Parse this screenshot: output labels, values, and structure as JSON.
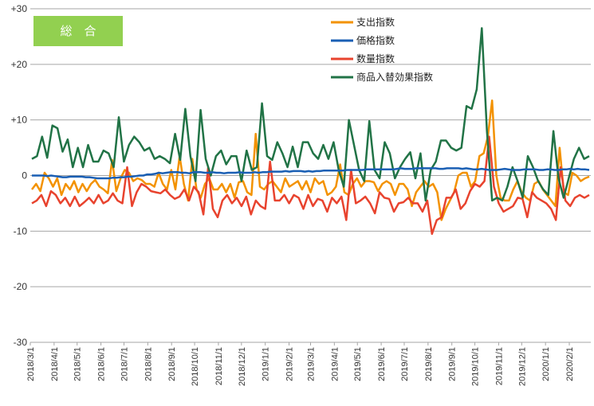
{
  "chart_data": {
    "type": "line",
    "title_box": "総　合",
    "title_box_color": "#92d050",
    "ylim": [
      -30,
      30
    ],
    "y_ticks": [
      30,
      20,
      10,
      0,
      -10,
      -20,
      -30
    ],
    "y_tick_labels": [
      "+30",
      "+20",
      "+10",
      "0",
      "-10",
      "-20",
      "-30"
    ],
    "x_start": "2018-03-01",
    "x_end": "2020-02-29",
    "x_tick_labels": [
      "2018/3/1",
      "2018/4/1",
      "2018/5/1",
      "2018/6/1",
      "2018/7/1",
      "2018/8/1",
      "2018/9/1",
      "2018/10/1",
      "2018/11/1",
      "2018/12/1",
      "2019/1/1",
      "2019/2/1",
      "2019/3/1",
      "2019/4/1",
      "2019/5/1",
      "2019/6/1",
      "2019/7/1",
      "2019/8/1",
      "2019/9/1",
      "2019/10/1",
      "2019/11/1",
      "2019/12/1",
      "2020/1/1",
      "2020/2/1"
    ],
    "grid": "horizontal",
    "legend_position": "top-right",
    "series": [
      {
        "name": "支出指数",
        "color": "#f39200",
        "values": [
          -2.5,
          -1.5,
          -2.8,
          0.5,
          -0.5,
          -2,
          -0.5,
          -3.5,
          -1.5,
          -2.5,
          -1,
          -3,
          -1.5,
          -2.8,
          -1.5,
          -0.8,
          -2,
          -2.5,
          -3.2,
          2.8,
          -2.8,
          -0.5,
          1,
          0.5,
          -1,
          -0.5,
          -0.8,
          -1.5,
          -1.5,
          -2,
          0.5,
          -1.5,
          -2.5,
          1,
          -2.5,
          3.5,
          -1.5,
          -4.5,
          3,
          -2.5,
          -4,
          -1.5,
          -0.5,
          -2.5,
          -2.5,
          -1.5,
          -3,
          -1.5,
          -4,
          -1.2,
          -1,
          -3,
          -3.5,
          7.5,
          -2,
          -2.5,
          -1.5,
          -1,
          -2,
          -3,
          -0.5,
          -2,
          -1.5,
          -1,
          -2.5,
          -1,
          -3,
          -0.5,
          -1.5,
          -1,
          -3.5,
          -3,
          -2,
          2,
          -3,
          -3.5,
          -1.5,
          -0.5,
          -2,
          -1,
          -1,
          -1.2,
          -2.8,
          -1.5,
          -1,
          -1.5,
          -3.5,
          -1.5,
          -1.5,
          -2.5,
          -5.5,
          -3,
          -2,
          -1,
          -2,
          -1.5,
          -3,
          -8,
          -6,
          -4.5,
          -3,
          0,
          0.5,
          0.5,
          -2,
          -1,
          3.5,
          4,
          7,
          13.5,
          0,
          -4,
          -4.5,
          -4.5,
          -2.5,
          -1,
          -3,
          -4,
          -4.5,
          -1.5,
          -1,
          -2.5,
          -3.5,
          -4.5,
          -5.5,
          5,
          -3,
          -3.5,
          0.5,
          0,
          -1,
          -0.5,
          -0.2
        ],
        "text_values": "approximate values read from the chart"
      },
      {
        "name": "価格指数",
        "color": "#1a5fb4",
        "values": [
          0,
          0,
          0,
          0,
          -0.1,
          0,
          -0.1,
          -0.2,
          -0.3,
          -0.3,
          -0.2,
          -0.2,
          -0.2,
          -0.2,
          -0.3,
          -0.3,
          -0.4,
          -0.5,
          -0.5,
          -0.5,
          -0.5,
          -0.4,
          -0.4,
          -0.3,
          -0.3,
          -0.2,
          -0.2,
          -0.1,
          0,
          0,
          0.2,
          0.2,
          0.3,
          0.5,
          0.4,
          0.5,
          0.6,
          0.6,
          0.6,
          0.5,
          0.5,
          0.4,
          0.6,
          0.6,
          0.6,
          0.5,
          0.5,
          0.6,
          0.5,
          0.5,
          0.4,
          0.5,
          0.5,
          0.5,
          0.6,
          0.5,
          0.5,
          0.5,
          0.6,
          0.5,
          0.6,
          0.6,
          0.7,
          0.7,
          0.7,
          0.7,
          0.8,
          0.7,
          0.8,
          0.8,
          0.8,
          0.7,
          0.8,
          0.7,
          0.8,
          0.8,
          0.9,
          0.9,
          0.9,
          0.9,
          0.9,
          0.9,
          1,
          1,
          1,
          1,
          1,
          1.1,
          1.1,
          1.1,
          1.1,
          1.1,
          1.1,
          1.1,
          1.1,
          1.2,
          1.3,
          1.2,
          1.2,
          1.2,
          1.3,
          1.3,
          1.3,
          1.3,
          1.3,
          1.3,
          1.2,
          1.2,
          1.3,
          1.3,
          1.3,
          1.3,
          1.2,
          1.3,
          1.2,
          1.1,
          1.1,
          1.2,
          1.1,
          1,
          1,
          1,
          1.1,
          1.2,
          1.1,
          1,
          1,
          1,
          1.1,
          1.1,
          1.1,
          1.1,
          1,
          1,
          1.1,
          1.1,
          1,
          1,
          1.1,
          1.1,
          1.2,
          1.1,
          1.2,
          1.1,
          1.1,
          1
        ],
        "text_values": "approximate values read from the chart"
      },
      {
        "name": "数量指数",
        "color": "#e8432e",
        "values": [
          -5,
          -4.5,
          -3.5,
          -5.5,
          -2.8,
          -3.5,
          -5,
          -4,
          -5.5,
          -3.8,
          -5.5,
          -4.8,
          -4,
          -5,
          -3.5,
          -5,
          -4.5,
          -3.2,
          -4.5,
          -5,
          1.5,
          -5.5,
          -3,
          -1.5,
          -2,
          -2.8,
          -3,
          -3.2,
          -2.5,
          -3.5,
          -4.2,
          -3.8,
          -2.5,
          -4.5,
          -2,
          -3,
          -7,
          1.5,
          -6,
          -7.5,
          -4.5,
          -3.5,
          -5,
          -4,
          -5.5,
          -3.8,
          -7,
          -4.5,
          -5.5,
          -6,
          2.5,
          -4.5,
          -4.5,
          -3.5,
          -5,
          -3.5,
          -4,
          -6,
          -3.5,
          -5.5,
          -4.2,
          -4.5,
          -6.5,
          -4,
          -5,
          -3.8,
          -8,
          1,
          -5,
          -4.5,
          -3.8,
          -5,
          -6.8,
          -3,
          -4,
          -4.2,
          -6.5,
          -5,
          -4.8,
          -4,
          -5,
          -5,
          -6.5,
          -4.5,
          -10.5,
          -8,
          -7.5,
          -4,
          -4,
          -2.5,
          -6,
          -5,
          -2.8,
          -1.5,
          -2,
          -1,
          7,
          -2,
          -5,
          -6.5,
          -6,
          -5.5,
          -4,
          -4.2,
          -7.5,
          -3,
          -4,
          -4.5,
          -5,
          -6,
          -8,
          1.5,
          -4.5,
          -5.5,
          -4,
          -3.5,
          -4,
          -3.5
        ],
        "text_values": "approximate values read from the chart"
      },
      {
        "name": "商品入替効果指数",
        "color": "#217346",
        "values": [
          3,
          3.5,
          7,
          3.2,
          9,
          8.5,
          4.3,
          6.5,
          1.5,
          5,
          1.5,
          5.5,
          2.5,
          2.5,
          4.5,
          4,
          1.5,
          10.5,
          2.5,
          5.5,
          7,
          6,
          4.5,
          5,
          3,
          3.5,
          3,
          2.2,
          7.5,
          2.8,
          12,
          3.5,
          -1,
          11.8,
          3,
          0,
          3.5,
          4.5,
          2,
          3.5,
          3.5,
          -1,
          4.5,
          1,
          1.5,
          13,
          3.5,
          2.8,
          6,
          4,
          1.5,
          5.2,
          1.5,
          6,
          6,
          4,
          3,
          5.5,
          3,
          6,
          1,
          -2,
          10,
          5.5,
          1,
          -1,
          9.8,
          1,
          -0.5,
          6,
          4,
          -0.5,
          1.5,
          3,
          4.2,
          -0.5,
          4,
          -4.5,
          1,
          2.5,
          6.3,
          6.3,
          5,
          4.5,
          5,
          12.5,
          12,
          15.5,
          26.5,
          8,
          -4.5,
          -4,
          -4.5,
          -2,
          1.5,
          -1,
          -4,
          3.5,
          1.5,
          -1,
          -2.5,
          -3.5,
          8,
          -0.5,
          -4,
          -0.5,
          3,
          5,
          3,
          3.5
        ],
        "text_values": "approximate values read from the chart"
      }
    ]
  }
}
